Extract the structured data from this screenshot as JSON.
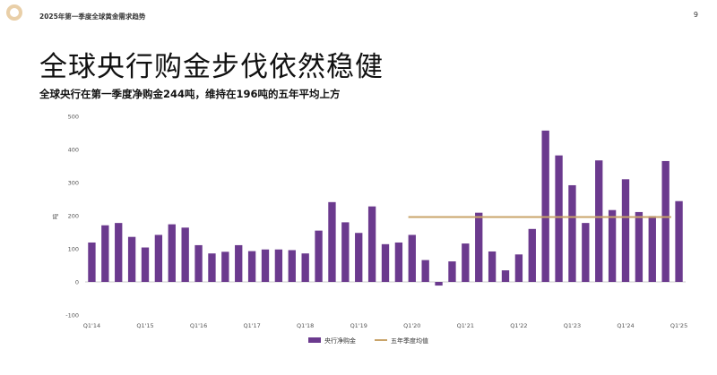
{
  "header": {
    "breadcrumb": "2025年第一季度全球黄金需求趋势",
    "page_number": "9"
  },
  "slide": {
    "title": "全球央行购金步伐依然稳健",
    "subtitle": "全球央行在第一季度净购金244吨，维持在196吨的五年平均上方"
  },
  "colors": {
    "bar": "#6b3a8e",
    "average": "#c9a46a",
    "grid": "#dddddd",
    "logo": "#e9cfa8"
  },
  "chart_data": {
    "type": "bar",
    "ylabel": "吨",
    "ylim": [
      -100,
      500
    ],
    "yticks": [
      "500",
      "400",
      "300",
      "200",
      "100",
      "0",
      "-100"
    ],
    "xtick_labels": [
      "Q1'14",
      "Q1'15",
      "Q1'16",
      "Q1'17",
      "Q1'18",
      "Q1'19",
      "Q1'20",
      "Q1'21",
      "Q1'22",
      "Q1'23",
      "Q1'24",
      "Q1'25"
    ],
    "categories": [
      "Q1'14",
      "Q2'14",
      "Q3'14",
      "Q4'14",
      "Q1'15",
      "Q2'15",
      "Q3'15",
      "Q4'15",
      "Q1'16",
      "Q2'16",
      "Q3'16",
      "Q4'16",
      "Q1'17",
      "Q2'17",
      "Q3'17",
      "Q4'17",
      "Q1'18",
      "Q2'18",
      "Q3'18",
      "Q4'18",
      "Q1'19",
      "Q2'19",
      "Q3'19",
      "Q4'19",
      "Q1'20",
      "Q2'20",
      "Q3'20",
      "Q4'20",
      "Q1'21",
      "Q2'21",
      "Q3'21",
      "Q4'21",
      "Q1'22",
      "Q2'22",
      "Q3'22",
      "Q4'22",
      "Q1'23",
      "Q2'23",
      "Q3'23",
      "Q4'23",
      "Q1'24",
      "Q2'24",
      "Q3'24",
      "Q4'24",
      "Q1'25"
    ],
    "series": [
      {
        "name": "央行净购金",
        "values": [
          119,
          171,
          178,
          136,
          104,
          142,
          174,
          164,
          111,
          86,
          91,
          111,
          93,
          98,
          98,
          96,
          86,
          155,
          241,
          180,
          148,
          228,
          114,
          119,
          142,
          66,
          -11,
          62,
          116,
          209,
          92,
          35,
          83,
          160,
          457,
          382,
          292,
          178,
          367,
          217,
          310,
          211,
          199,
          365,
          244
        ]
      }
    ],
    "average": {
      "name": "五年季度均值",
      "value": 196,
      "start": "Q1'20",
      "end": "Q4'24"
    },
    "legend_position": "bottom",
    "grid": false
  }
}
